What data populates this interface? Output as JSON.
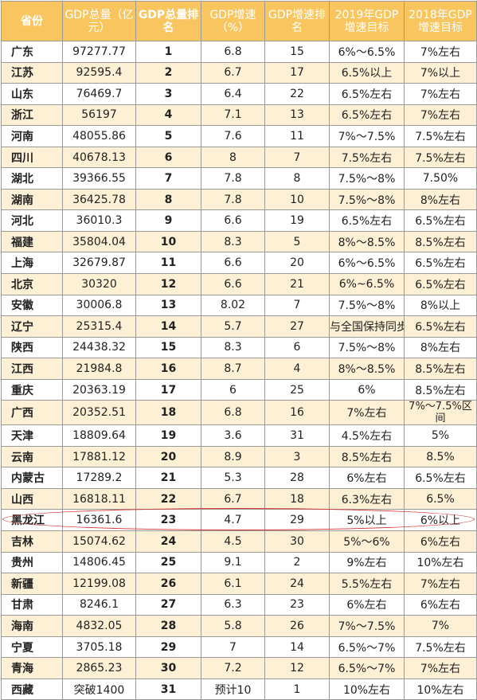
{
  "headers": [
    "省份",
    "GDP总量（亿元）",
    "GDP总量排名",
    "GDP增速（%）",
    "GDP增速排名",
    "2019年GDP增速目标",
    "2018年GDP增速目标"
  ],
  "rows": [
    [
      "广东",
      "97277.77",
      "1",
      "6.8",
      "15",
      "6%～6.5%",
      "7%左右"
    ],
    [
      "江苏",
      "92595.4",
      "2",
      "6.7",
      "17",
      "6.5%以上",
      "7%以上"
    ],
    [
      "山东",
      "76469.7",
      "3",
      "6.4",
      "22",
      "6.5%左右",
      "7%左右"
    ],
    [
      "浙江",
      "56197",
      "4",
      "7.1",
      "13",
      "6.5%左右",
      "7%左右"
    ],
    [
      "河南",
      "48055.86",
      "5",
      "7.6",
      "11",
      "7%～7.5%",
      "7.5%左右"
    ],
    [
      "四川",
      "40678.13",
      "6",
      "8",
      "7",
      "7.5%左右",
      "7.5%左右"
    ],
    [
      "湖北",
      "39366.55",
      "7",
      "7.8",
      "8",
      "7.5%～8%",
      "7.50%"
    ],
    [
      "湖南",
      "36425.78",
      "8",
      "7.8",
      "10",
      "7.5%～8%",
      "8%左右"
    ],
    [
      "河北",
      "36010.3",
      "9",
      "6.6",
      "19",
      "6.5%左右",
      "6.5%左右"
    ],
    [
      "福建",
      "35804.04",
      "10",
      "8.3",
      "5",
      "8%～8.5%",
      "8.5%左右"
    ],
    [
      "上海",
      "32679.87",
      "11",
      "6.6",
      "20",
      "6%～6.5%",
      "6.5%左右"
    ],
    [
      "北京",
      "30320",
      "12",
      "6.6",
      "21",
      "6%~6.5%",
      "6.5%左右"
    ],
    [
      "安徽",
      "30006.8",
      "13",
      "8.02",
      "7",
      "7.5%～8%",
      "8%以上"
    ],
    [
      "辽宁",
      "25315.4",
      "14",
      "5.7",
      "27",
      "与全国保持同步",
      "6.5%左右"
    ],
    [
      "陕西",
      "24438.32",
      "15",
      "8.3",
      "6",
      "7.5%～8%",
      "8%左右"
    ],
    [
      "江西",
      "21984.8",
      "16",
      "8.7",
      "4",
      "8%～8.5%",
      "8.5%左右"
    ],
    [
      "重庆",
      "20363.19",
      "17",
      "6",
      "25",
      "6%",
      "8.5%左右"
    ],
    [
      "广西",
      "20352.51",
      "18",
      "6.8",
      "16",
      "7%左右",
      "7%～7.5%区间"
    ],
    [
      "天津",
      "18809.64",
      "19",
      "3.6",
      "31",
      "4.5%左右",
      "5%"
    ],
    [
      "云南",
      "17881.12",
      "20",
      "8.9",
      "3",
      "8.5%左右",
      "8.5%"
    ],
    [
      "内蒙古",
      "17289.2",
      "21",
      "5.3",
      "28",
      "6%左右",
      "6.5%左右"
    ],
    [
      "山西",
      "16818.11",
      "22",
      "6.7",
      "18",
      "6.3%左右",
      "6.5%"
    ],
    [
      "黑龙江",
      "16361.6",
      "23",
      "4.7",
      "29",
      "5%以上",
      "6%以上"
    ],
    [
      "吉林",
      "15074.62",
      "24",
      "4.5",
      "30",
      "5%～6%",
      "6%左右"
    ],
    [
      "贵州",
      "14806.45",
      "25",
      "9.1",
      "2",
      "9%左右",
      "10%左右"
    ],
    [
      "新疆",
      "12199.08",
      "26",
      "6.1",
      "24",
      "5.5%左右",
      "7%左右"
    ],
    [
      "甘肃",
      "8246.1",
      "27",
      "6.3",
      "23",
      "6%左右",
      "6%左右"
    ],
    [
      "海南",
      "4832.05",
      "28",
      "5.8",
      "26",
      "7%～7.5%",
      "7%"
    ],
    [
      "宁夏",
      "3705.18",
      "29",
      "7",
      "14",
      "6.5%～7%",
      "7.5%左右"
    ],
    [
      "青海",
      "2865.23",
      "30",
      "7.2",
      "12",
      "6.5%～7%",
      "7%左右"
    ],
    [
      "西藏",
      "突破1400",
      "31",
      "预计10",
      "1",
      "10%左右",
      "10%左右"
    ]
  ],
  "highlighted_row": "黑龙江",
  "colors": {
    "header_bg": "#f8c55e",
    "stripe_bg": "#fdf0d4",
    "highlight_oval": "#d2322d"
  }
}
